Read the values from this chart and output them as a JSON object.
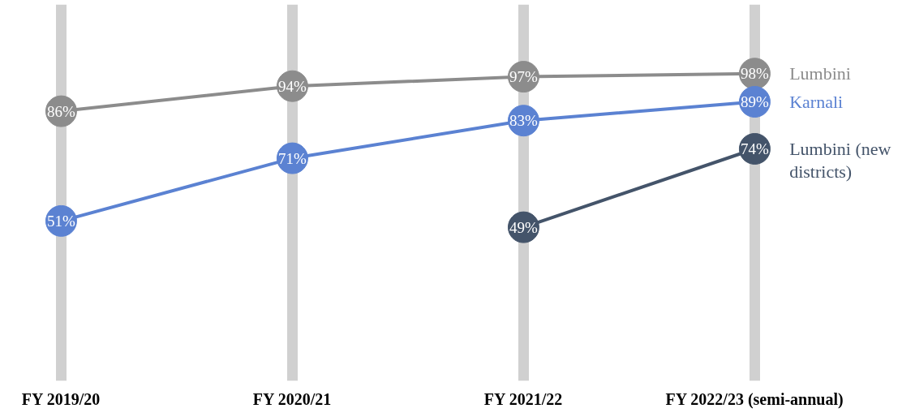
{
  "chart_data": {
    "type": "line",
    "categories": [
      "FY 2019/20",
      "FY 2020/21",
      "FY 2021/22",
      "FY 2022/23 (semi-annual)"
    ],
    "series": [
      {
        "name": "Lumbini",
        "color": "#8c8c8c",
        "values": [
          86,
          94,
          97,
          98
        ],
        "value_labels": [
          "86%",
          "94%",
          "97%",
          "98%"
        ]
      },
      {
        "name": "Karnali",
        "color": "#5b82d2",
        "values": [
          51,
          71,
          83,
          89
        ],
        "value_labels": [
          "51%",
          "71%",
          "83%",
          "89%"
        ]
      },
      {
        "name": "Lumbini (new districts)",
        "color": "#44546a",
        "values": [
          null,
          null,
          49,
          74
        ],
        "value_labels": [
          null,
          null,
          "49%",
          "74%"
        ]
      }
    ],
    "tick_labels": "x",
    "grid": "x",
    "legend": "right",
    "marker": "circle",
    "line_style": "solid"
  }
}
